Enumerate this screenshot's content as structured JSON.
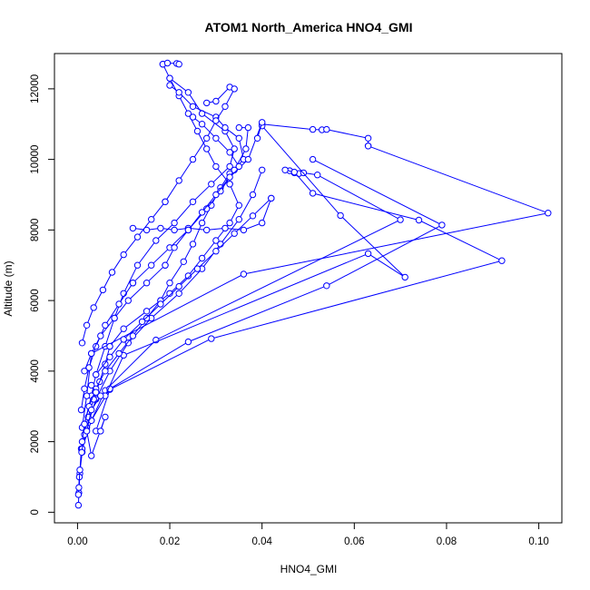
{
  "chart_data": {
    "type": "line",
    "title": "ATOM1 North_America HNO4_GMI",
    "xlabel": "HNO4_GMI",
    "ylabel": "Altitude (m)",
    "xlim": [
      -0.005,
      0.105
    ],
    "ylim": [
      -300,
      13000
    ],
    "x_ticks": [
      0.0,
      0.02,
      0.04,
      0.06,
      0.08,
      0.1
    ],
    "x_tick_labels": [
      "0.00",
      "0.02",
      "0.04",
      "0.06",
      "0.08",
      "0.10"
    ],
    "y_ticks": [
      0,
      2000,
      4000,
      6000,
      8000,
      10000,
      12000
    ],
    "y_tick_labels": [
      "0",
      "2000",
      "4000",
      "6000",
      "8000",
      "10000",
      "12000"
    ],
    "markers": "open-circle",
    "grid": false,
    "color": "#0000ff",
    "series": [
      {
        "x": [
          0.0002,
          0.0003,
          0.0005,
          0.0008,
          0.0015,
          0.003,
          0.004,
          0.006,
          0.008,
          0.01,
          0.013,
          0.017,
          0.021,
          0.025,
          0.029,
          0.033,
          0.034,
          0.032,
          0.027,
          0.024,
          0.02
        ],
        "y": [
          200,
          550,
          1100,
          1800,
          2500,
          3300,
          3900,
          4700,
          5500,
          6200,
          7000,
          7700,
          8200,
          8800,
          9300,
          9800,
          10300,
          10800,
          11300,
          11900,
          12300
        ]
      },
      {
        "x": [
          0.0002,
          0.0004,
          0.001,
          0.002,
          0.004,
          0.007,
          0.011,
          0.016,
          0.022,
          0.027,
          0.031,
          0.035,
          0.038,
          0.04
        ],
        "y": [
          500,
          1000,
          1700,
          2400,
          3200,
          4000,
          4800,
          5500,
          6200,
          6900,
          7600,
          8300,
          9000,
          9700
        ]
      },
      {
        "x": [
          0.04,
          0.051,
          0.053,
          0.054,
          0.063,
          0.063
        ],
        "y": [
          11000,
          10850,
          10840,
          10850,
          10600,
          10380
        ]
      },
      {
        "x": [
          0.063,
          0.102,
          0.036,
          0.003,
          0.002,
          0.001
        ],
        "y": [
          10380,
          8480,
          6750,
          4500,
          3300,
          2400
        ]
      },
      {
        "x": [
          0.046,
          0.047,
          0.048,
          0.049,
          0.052,
          0.07,
          0.017,
          0.006,
          0.003,
          0.001
        ],
        "y": [
          9680,
          9620,
          9600,
          9620,
          9560,
          8290,
          4880,
          3450,
          2600,
          1800
        ]
      },
      {
        "x": [
          0.045,
          0.047,
          0.051,
          0.074,
          0.092,
          0.029,
          0.007,
          0.004
        ],
        "y": [
          9700,
          9640,
          9040,
          8280,
          7130,
          4920,
          3480,
          2300
        ]
      },
      {
        "x": [
          0.051,
          0.079,
          0.054,
          0.024,
          0.007,
          0.003
        ],
        "y": [
          10000,
          8140,
          6420,
          4830,
          3500,
          2600
        ]
      },
      {
        "x": [
          0.04,
          0.057,
          0.071,
          0.063,
          0.01,
          0.006
        ],
        "y": [
          10950,
          8410,
          6660,
          7330,
          4450,
          3300
        ]
      },
      {
        "x": [
          0.0003,
          0.0005,
          0.0009,
          0.0015,
          0.0023,
          0.0035,
          0.0048,
          0.006,
          0.007
        ],
        "y": [
          700,
          1200,
          1700,
          2200,
          2700,
          3200,
          3700,
          4200,
          4700
        ]
      },
      {
        "x": [
          0.007,
          0.01,
          0.015,
          0.02,
          0.024,
          0.027,
          0.03,
          0.033,
          0.035,
          0.033
        ],
        "y": [
          4700,
          5200,
          5700,
          6200,
          6700,
          7200,
          7700,
          8200,
          8700,
          9300
        ]
      },
      {
        "x": [
          0.033,
          0.03,
          0.028,
          0.026,
          0.024,
          0.022,
          0.02,
          0.0185
        ],
        "y": [
          9300,
          9800,
          10300,
          10800,
          11300,
          11800,
          12300,
          12700
        ]
      },
      {
        "x": [
          0.0185,
          0.0195,
          0.0215,
          0.022
        ],
        "y": [
          12700,
          12730,
          12720,
          12700
        ]
      },
      {
        "x": [
          0.02,
          0.022,
          0.025,
          0.03,
          0.032,
          0.035,
          0.036,
          0.033,
          0.031,
          0.029,
          0.027,
          0.025,
          0.023,
          0.02,
          0.018
        ],
        "y": [
          12100,
          11900,
          11500,
          11200,
          10900,
          10600,
          10000,
          9600,
          9200,
          8700,
          8200,
          7600,
          7100,
          6500,
          6000
        ]
      },
      {
        "x": [
          0.018,
          0.015,
          0.012,
          0.009,
          0.006,
          0.004,
          0.0025,
          0.0015,
          0.001
        ],
        "y": [
          6000,
          5500,
          5000,
          4500,
          4000,
          3500,
          3000,
          2500,
          2000
        ]
      },
      {
        "x": [
          0.028,
          0.03,
          0.033,
          0.034,
          0.032,
          0.03,
          0.028,
          0.025,
          0.022,
          0.019
        ],
        "y": [
          11600,
          11650,
          12050,
          12000,
          11500,
          11100,
          10600,
          10000,
          9400,
          8800
        ]
      },
      {
        "x": [
          0.019,
          0.016,
          0.013,
          0.01,
          0.0075,
          0.0055,
          0.0035,
          0.002,
          0.001
        ],
        "y": [
          8800,
          8300,
          7800,
          7300,
          6800,
          6300,
          5800,
          5300,
          4800
        ]
      },
      {
        "x": [
          0.012,
          0.015,
          0.018,
          0.021,
          0.024,
          0.028,
          0.032,
          0.036,
          0.04,
          0.042
        ],
        "y": [
          8050,
          8000,
          8050,
          8000,
          8050,
          8000,
          8050,
          8000,
          8200,
          8900
        ]
      },
      {
        "x": [
          0.042,
          0.038,
          0.034,
          0.03,
          0.026,
          0.022,
          0.018,
          0.014,
          0.01,
          0.007,
          0.004
        ],
        "y": [
          8900,
          8400,
          7900,
          7400,
          6900,
          6400,
          5900,
          5400,
          4900,
          4400,
          3900
        ]
      },
      {
        "x": [
          0.035,
          0.037,
          0.0365,
          0.034,
          0.031,
          0.028,
          0.024,
          0.02,
          0.016,
          0.012
        ],
        "y": [
          10900,
          10900,
          10300,
          9700,
          9100,
          8600,
          8000,
          7500,
          7000,
          6500
        ]
      },
      {
        "x": [
          0.012,
          0.009,
          0.006,
          0.004,
          0.0025,
          0.0015,
          0.0008
        ],
        "y": [
          6500,
          5900,
          5300,
          4700,
          4100,
          3500,
          2900
        ]
      },
      {
        "x": [
          0.039,
          0.04,
          0.037,
          0.033,
          0.03,
          0.027,
          0.024,
          0.021,
          0.019
        ],
        "y": [
          10600,
          11050,
          10000,
          9500,
          9000,
          8500,
          8000,
          7500,
          7000
        ]
      },
      {
        "x": [
          0.019,
          0.015,
          0.011,
          0.008,
          0.005,
          0.003,
          0.0015
        ],
        "y": [
          7000,
          6500,
          6000,
          5500,
          5000,
          4500,
          4000
        ]
      },
      {
        "x": [
          0.025,
          0.027,
          0.03,
          0.033,
          0.035
        ],
        "y": [
          11200,
          11000,
          10600,
          10200,
          9800
        ]
      },
      {
        "x": [
          0.005,
          0.006,
          0.003,
          0.002,
          0.003,
          0.005,
          0.004,
          0.003
        ],
        "y": [
          2300,
          2700,
          1600,
          2300,
          2900,
          3300,
          3400,
          3600
        ]
      }
    ]
  }
}
